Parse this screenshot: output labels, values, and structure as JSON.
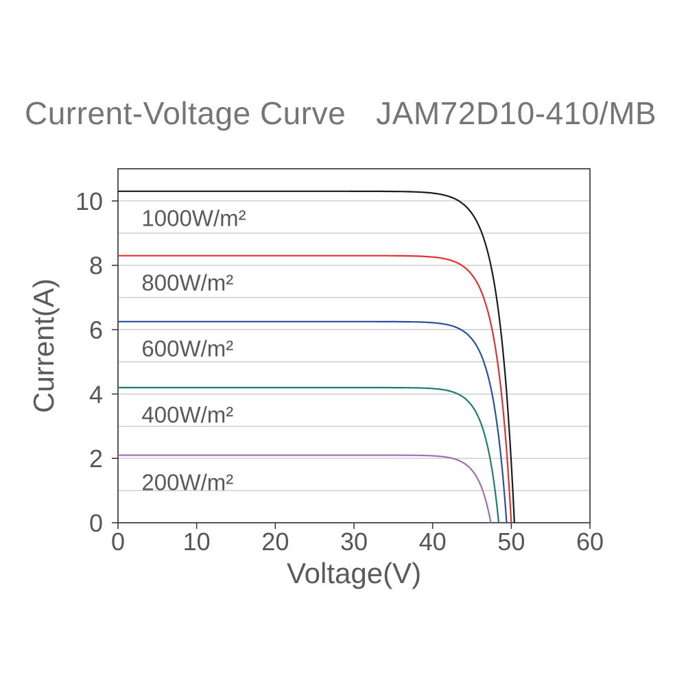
{
  "title": {
    "left": "Current-Voltage Curve",
    "right": "JAM72D10-410/MB"
  },
  "chart_data": {
    "type": "line",
    "title": "Current-Voltage Curve JAM72D10-410/MB",
    "xlabel": "Voltage(V)",
    "ylabel": "Current(A)",
    "xlim": [
      0,
      60
    ],
    "ylim": [
      0,
      11
    ],
    "xticks": [
      0,
      10,
      20,
      30,
      40,
      50,
      60
    ],
    "yticks": [
      0,
      2,
      4,
      6,
      8,
      10
    ],
    "grid": "horizontal",
    "gridlines_at": [
      1,
      2,
      3,
      4,
      5,
      6,
      7,
      8,
      9,
      10
    ],
    "legend_position": "inline-labels",
    "series": [
      {
        "name": "1000W/m²",
        "label": "1000W/m²",
        "color": "#1a1a1a",
        "isc": 10.3,
        "voc": 50.4,
        "knee": 2.0,
        "points": [
          [
            0,
            10.3
          ],
          [
            10,
            10.3
          ],
          [
            20,
            10.3
          ],
          [
            30,
            10.28
          ],
          [
            38,
            10.2
          ],
          [
            42,
            9.9
          ],
          [
            45,
            9.2
          ],
          [
            47,
            8.0
          ],
          [
            48.5,
            6.4
          ],
          [
            49.5,
            4.2
          ],
          [
            50.4,
            0
          ]
        ]
      },
      {
        "name": "800W/m²",
        "label": "800W/m²",
        "color": "#e03131",
        "isc": 8.3,
        "voc": 50.0,
        "knee": 1.9,
        "points": [
          [
            0,
            8.3
          ],
          [
            10,
            8.3
          ],
          [
            20,
            8.3
          ],
          [
            30,
            8.28
          ],
          [
            38,
            8.22
          ],
          [
            42,
            8.0
          ],
          [
            45,
            7.4
          ],
          [
            47,
            6.4
          ],
          [
            48.5,
            5.0
          ],
          [
            49.5,
            3.0
          ],
          [
            50,
            0
          ]
        ]
      },
      {
        "name": "600W/m²",
        "label": "600W/m²",
        "color": "#2b4fa0",
        "isc": 6.25,
        "voc": 49.4,
        "knee": 1.8,
        "points": [
          [
            0,
            6.25
          ],
          [
            10,
            6.25
          ],
          [
            20,
            6.25
          ],
          [
            30,
            6.23
          ],
          [
            38,
            6.18
          ],
          [
            42,
            6.0
          ],
          [
            45,
            5.5
          ],
          [
            47,
            4.6
          ],
          [
            48.5,
            3.2
          ],
          [
            49.4,
            0
          ]
        ]
      },
      {
        "name": "400W/m²",
        "label": "400W/m²",
        "color": "#1f7a72",
        "isc": 4.2,
        "voc": 48.4,
        "knee": 1.7,
        "points": [
          [
            0,
            4.2
          ],
          [
            10,
            4.2
          ],
          [
            20,
            4.2
          ],
          [
            30,
            4.19
          ],
          [
            38,
            4.14
          ],
          [
            42,
            4.0
          ],
          [
            45,
            3.6
          ],
          [
            46.5,
            3.0
          ],
          [
            47.5,
            2.2
          ],
          [
            48.4,
            0
          ]
        ]
      },
      {
        "name": "200W/m²",
        "label": "200W/m²",
        "color": "#a66bb8",
        "isc": 2.1,
        "voc": 47.4,
        "knee": 1.6,
        "points": [
          [
            0,
            2.1
          ],
          [
            10,
            2.1
          ],
          [
            20,
            2.1
          ],
          [
            30,
            2.09
          ],
          [
            38,
            2.06
          ],
          [
            42,
            1.98
          ],
          [
            44,
            1.85
          ],
          [
            45.5,
            1.6
          ],
          [
            46.5,
            1.2
          ],
          [
            47.4,
            0
          ]
        ]
      }
    ]
  }
}
